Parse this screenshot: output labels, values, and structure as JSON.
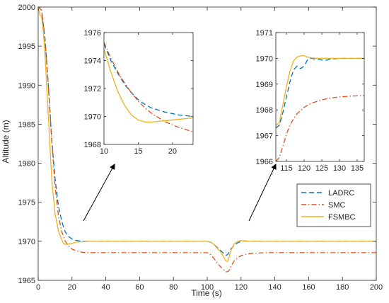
{
  "chart_data": {
    "type": "line",
    "title": "",
    "xlabel": "Time (s)",
    "ylabel": "Altitude (m)",
    "xlim": [
      0,
      200
    ],
    "ylim": [
      1965,
      2000
    ],
    "xticks": [
      "0",
      "20",
      "40",
      "60",
      "80",
      "100",
      "120",
      "140",
      "160",
      "180",
      "200"
    ],
    "yticks": [
      "1965",
      "1970",
      "1975",
      "1980",
      "1985",
      "1990",
      "1995",
      "2000"
    ],
    "legend_position": "bottom-right",
    "colors": {
      "LADRC": "#0072BD",
      "SMC": "#D95319",
      "FSMBC": "#EDB120"
    },
    "series": [
      {
        "name": "LADRC",
        "style": "dashed",
        "x": [
          0,
          2,
          4,
          6,
          8,
          10,
          12,
          14,
          16,
          18,
          20,
          23,
          26,
          30,
          40,
          60,
          80,
          100,
          102,
          104,
          106,
          108,
          110,
          111,
          112,
          113,
          114,
          116,
          118,
          120,
          122,
          125,
          130,
          140,
          160,
          180,
          200
        ],
        "y": [
          2000,
          1999.6,
          1996,
          1990,
          1983,
          1978,
          1974.5,
          1972.5,
          1971.2,
          1970.6,
          1970.3,
          1970.1,
          1970.0,
          1970.0,
          1970.0,
          1970.0,
          1970.0,
          1970.0,
          1969.9,
          1969.6,
          1969.2,
          1968.8,
          1968.4,
          1968.2,
          1968.3,
          1968.6,
          1969.0,
          1969.5,
          1969.8,
          1970.0,
          1970.05,
          1970.0,
          1970.0,
          1970.0,
          1970.0,
          1970.0,
          1970.0
        ]
      },
      {
        "name": "SMC",
        "style": "dashdot",
        "x": [
          0,
          2,
          4,
          6,
          8,
          10,
          12,
          14,
          16,
          18,
          20,
          23,
          26,
          30,
          40,
          60,
          80,
          100,
          102,
          104,
          106,
          108,
          110,
          111,
          112,
          113,
          114,
          116,
          118,
          120,
          123,
          126,
          130,
          136,
          140,
          160,
          180,
          200
        ],
        "y": [
          2000,
          1999.6,
          1996,
          1990,
          1983,
          1977,
          1973.2,
          1971.2,
          1970.0,
          1969.4,
          1969.0,
          1968.75,
          1968.6,
          1968.55,
          1968.55,
          1968.55,
          1968.55,
          1968.55,
          1968.3,
          1967.8,
          1967.2,
          1966.7,
          1966.3,
          1966.1,
          1966.1,
          1966.3,
          1966.8,
          1967.5,
          1967.9,
          1968.15,
          1968.35,
          1968.45,
          1968.5,
          1968.55,
          1968.55,
          1968.55,
          1968.55,
          1968.55
        ]
      },
      {
        "name": "FSMBC",
        "style": "solid",
        "x": [
          0,
          0.5,
          1,
          2,
          3,
          4,
          6,
          8,
          10,
          12,
          14,
          15,
          16,
          17,
          18,
          20,
          23,
          30,
          40,
          60,
          80,
          100,
          102,
          104,
          106,
          108,
          110,
          111,
          112,
          113,
          114,
          116,
          118,
          120,
          122,
          125,
          130,
          140,
          160,
          180,
          200
        ],
        "y": [
          2000,
          1999.5,
          1999,
          1998.8,
          1997,
          1994,
          1986,
          1978,
          1973.5,
          1971.3,
          1970.2,
          1969.7,
          1969.6,
          1969.6,
          1969.65,
          1969.75,
          1969.9,
          1970.0,
          1970.0,
          1970.0,
          1970.0,
          1970.0,
          1969.9,
          1969.6,
          1969.1,
          1968.6,
          1967.9,
          1967.5,
          1967.4,
          1968.0,
          1968.8,
          1969.7,
          1970.0,
          1970.1,
          1970.05,
          1970.0,
          1970.0,
          1970.0,
          1970.0,
          1970.0,
          1970.0
        ]
      }
    ],
    "insets": [
      {
        "xlim": [
          10,
          23
        ],
        "ylim": [
          1968,
          1976
        ],
        "xticks": [
          "10",
          "15",
          "20"
        ],
        "yticks": [
          "1968",
          "1970",
          "1972",
          "1974",
          "1976"
        ],
        "series": [
          {
            "name": "LADRC",
            "x": [
              10,
              11,
              12,
              13,
              14,
              15,
              16,
              17,
              18,
              19,
              20,
              21,
              22,
              23
            ],
            "y": [
              1975.2,
              1974.0,
              1973.1,
              1972.3,
              1971.7,
              1971.2,
              1970.85,
              1970.6,
              1970.45,
              1970.3,
              1970.2,
              1970.1,
              1970.05,
              1970.0
            ]
          },
          {
            "name": "SMC",
            "x": [
              10,
              11,
              12,
              13,
              14,
              15,
              16,
              17,
              18,
              19,
              20,
              21,
              22,
              23
            ],
            "y": [
              1975.3,
              1974.2,
              1973.2,
              1972.4,
              1971.7,
              1971.1,
              1970.6,
              1970.2,
              1969.9,
              1969.6,
              1969.4,
              1969.2,
              1969.05,
              1968.9
            ]
          },
          {
            "name": "FSMBC",
            "x": [
              10,
              11,
              12,
              13,
              14,
              15,
              16,
              17,
              18,
              19,
              20,
              21,
              22,
              23
            ],
            "y": [
              1974.8,
              1973.2,
              1971.8,
              1970.8,
              1970.1,
              1969.75,
              1969.6,
              1969.6,
              1969.65,
              1969.7,
              1969.75,
              1969.8,
              1969.85,
              1969.9
            ]
          }
        ]
      },
      {
        "xlim": [
          112,
          137
        ],
        "ylim": [
          1966,
          1971
        ],
        "xticks": [
          "115",
          "120",
          "125",
          "130",
          "135"
        ],
        "yticks": [
          "1966",
          "1967",
          "1968",
          "1969",
          "1970",
          "1971"
        ],
        "series": [
          {
            "name": "LADRC",
            "x": [
              112,
              113,
              114,
              115,
              116,
              117,
              118,
              119,
              120,
              121,
              122,
              124,
              126,
              128,
              130,
              132,
              134,
              137
            ],
            "y": [
              1967.3,
              1967.4,
              1967.9,
              1968.5,
              1969.1,
              1969.55,
              1969.7,
              1969.6,
              1969.7,
              1969.95,
              1970.0,
              1969.95,
              1969.92,
              1969.98,
              1970.0,
              1970.0,
              1970.0,
              1970.0
            ]
          },
          {
            "name": "SMC",
            "x": [
              112,
              113,
              114,
              115,
              116,
              117,
              118,
              120,
              122,
              124,
              126,
              128,
              130,
              132,
              134,
              137
            ],
            "y": [
              1966.0,
              1966.15,
              1966.6,
              1967.05,
              1967.4,
              1967.65,
              1967.85,
              1968.1,
              1968.25,
              1968.35,
              1968.42,
              1968.47,
              1968.5,
              1968.52,
              1968.54,
              1968.55
            ]
          },
          {
            "name": "FSMBC",
            "x": [
              112,
              113,
              114,
              115,
              116,
              117,
              118,
              119,
              120,
              121,
              122,
              124,
              126,
              128,
              130,
              132,
              134,
              137
            ],
            "y": [
              1967.4,
              1967.5,
              1968.2,
              1968.9,
              1969.5,
              1969.9,
              1970.05,
              1970.1,
              1970.1,
              1970.05,
              1970.02,
              1970.0,
              1970.0,
              1970.0,
              1970.0,
              1970.0,
              1970.0,
              1970.0
            ]
          }
        ]
      }
    ]
  }
}
